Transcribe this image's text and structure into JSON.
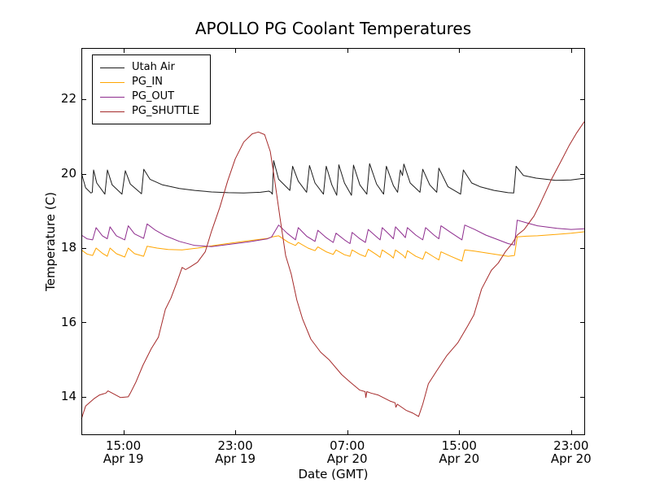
{
  "figure": {
    "background": "#ffffff",
    "text_color": "#000000",
    "axes_color": "#000000"
  },
  "chart_data": {
    "type": "line",
    "title": "APOLLO PG Coolant Temperatures",
    "xlabel": "Date (GMT)",
    "ylabel": "Temperature (C)",
    "grid": false,
    "legend_position": "upper left",
    "x_unit": "hours since Apr 19 12:00 GMT (plot left edge)",
    "xlim": [
      0,
      36
    ],
    "ylim": [
      12.97,
      23.38
    ],
    "y_ticks": [
      {
        "value": 22,
        "label": "22"
      },
      {
        "value": 20,
        "label": "20"
      },
      {
        "value": 18,
        "label": "18"
      },
      {
        "value": 16,
        "label": "16"
      },
      {
        "value": 14,
        "label": "14"
      }
    ],
    "x_ticks": [
      {
        "h": 3,
        "line1": "15:00",
        "line2": "Apr 19"
      },
      {
        "h": 11,
        "line1": "23:00",
        "line2": "Apr 19"
      },
      {
        "h": 19,
        "line1": "07:00",
        "line2": "Apr 20"
      },
      {
        "h": 27,
        "line1": "15:00",
        "line2": "Apr 20"
      },
      {
        "h": 35,
        "line1": "23:00",
        "line2": "Apr 20"
      }
    ],
    "series": [
      {
        "name": "Utah Air",
        "color": "#1c1c1c",
        "points": [
          [
            0,
            20.02
          ],
          [
            0.3,
            19.62
          ],
          [
            0.68,
            19.48
          ],
          [
            0.78,
            19.5
          ],
          [
            0.87,
            20.1
          ],
          [
            1.1,
            19.75
          ],
          [
            1.68,
            19.45
          ],
          [
            1.86,
            20.1
          ],
          [
            2.2,
            19.7
          ],
          [
            2.9,
            19.45
          ],
          [
            3.14,
            20.08
          ],
          [
            3.5,
            19.72
          ],
          [
            4.3,
            19.46
          ],
          [
            4.46,
            20.12
          ],
          [
            4.9,
            19.85
          ],
          [
            5.8,
            19.7
          ],
          [
            7.0,
            19.6
          ],
          [
            8.1,
            19.55
          ],
          [
            9.3,
            19.51
          ],
          [
            10.5,
            19.49
          ],
          [
            11.6,
            19.48
          ],
          [
            12.8,
            19.5
          ],
          [
            13.4,
            19.53
          ],
          [
            13.55,
            19.5
          ],
          [
            13.65,
            19.45
          ],
          [
            13.74,
            20.35
          ],
          [
            14.1,
            19.85
          ],
          [
            14.9,
            19.55
          ],
          [
            15.1,
            20.2
          ],
          [
            15.5,
            19.8
          ],
          [
            16.1,
            19.5
          ],
          [
            16.3,
            20.22
          ],
          [
            16.7,
            19.75
          ],
          [
            17.3,
            19.45
          ],
          [
            17.5,
            20.2
          ],
          [
            17.9,
            19.7
          ],
          [
            18.25,
            19.42
          ],
          [
            18.4,
            20.24
          ],
          [
            18.8,
            19.75
          ],
          [
            19.3,
            19.42
          ],
          [
            19.45,
            20.23
          ],
          [
            19.9,
            19.7
          ],
          [
            20.4,
            19.45
          ],
          [
            20.6,
            20.27
          ],
          [
            21.1,
            19.72
          ],
          [
            21.6,
            19.45
          ],
          [
            21.8,
            20.2
          ],
          [
            22.3,
            19.68
          ],
          [
            22.6,
            19.5
          ],
          [
            22.8,
            20.1
          ],
          [
            22.95,
            19.95
          ],
          [
            23.05,
            20.26
          ],
          [
            23.5,
            19.75
          ],
          [
            24.2,
            19.5
          ],
          [
            24.4,
            20.12
          ],
          [
            24.9,
            19.7
          ],
          [
            25.4,
            19.5
          ],
          [
            25.55,
            20.15
          ],
          [
            26.2,
            19.65
          ],
          [
            27.1,
            19.45
          ],
          [
            27.3,
            20.1
          ],
          [
            27.9,
            19.75
          ],
          [
            28.5,
            19.65
          ],
          [
            29.5,
            19.55
          ],
          [
            30.5,
            19.49
          ],
          [
            30.9,
            19.48
          ],
          [
            31.07,
            20.2
          ],
          [
            31.6,
            19.95
          ],
          [
            32.5,
            19.88
          ],
          [
            33.9,
            19.82
          ],
          [
            35.0,
            19.83
          ],
          [
            36.0,
            19.88
          ]
        ]
      },
      {
        "name": "PG_IN",
        "color": "#ffa500",
        "points": [
          [
            0,
            17.95
          ],
          [
            0.4,
            17.84
          ],
          [
            0.8,
            17.8
          ],
          [
            1.05,
            18.0
          ],
          [
            1.5,
            17.86
          ],
          [
            1.85,
            17.78
          ],
          [
            2.05,
            18.0
          ],
          [
            2.5,
            17.85
          ],
          [
            3.1,
            17.76
          ],
          [
            3.35,
            18.0
          ],
          [
            3.8,
            17.85
          ],
          [
            4.45,
            17.78
          ],
          [
            4.7,
            18.05
          ],
          [
            5.4,
            18.0
          ],
          [
            6.2,
            17.96
          ],
          [
            7.2,
            17.95
          ],
          [
            8.3,
            18.0
          ],
          [
            9.5,
            18.07
          ],
          [
            10.8,
            18.14
          ],
          [
            12.0,
            18.2
          ],
          [
            13.3,
            18.26
          ],
          [
            13.65,
            18.3
          ],
          [
            14.1,
            18.33
          ],
          [
            14.8,
            18.15
          ],
          [
            15.3,
            18.07
          ],
          [
            15.5,
            18.15
          ],
          [
            16.2,
            18.0
          ],
          [
            16.7,
            17.93
          ],
          [
            16.9,
            18.03
          ],
          [
            17.5,
            17.9
          ],
          [
            18.0,
            17.83
          ],
          [
            18.2,
            17.95
          ],
          [
            18.8,
            17.82
          ],
          [
            19.2,
            17.78
          ],
          [
            19.35,
            17.95
          ],
          [
            19.9,
            17.83
          ],
          [
            20.3,
            17.77
          ],
          [
            20.5,
            17.97
          ],
          [
            21.1,
            17.82
          ],
          [
            21.35,
            17.75
          ],
          [
            21.5,
            17.95
          ],
          [
            22.1,
            17.8
          ],
          [
            22.3,
            17.73
          ],
          [
            22.45,
            17.95
          ],
          [
            23.0,
            17.8
          ],
          [
            23.15,
            17.73
          ],
          [
            23.3,
            17.93
          ],
          [
            23.9,
            17.78
          ],
          [
            24.4,
            17.7
          ],
          [
            24.6,
            17.9
          ],
          [
            25.2,
            17.76
          ],
          [
            25.55,
            17.68
          ],
          [
            25.7,
            17.9
          ],
          [
            26.4,
            17.78
          ],
          [
            27.2,
            17.65
          ],
          [
            27.4,
            17.95
          ],
          [
            28.1,
            17.92
          ],
          [
            28.9,
            17.87
          ],
          [
            29.8,
            17.82
          ],
          [
            30.5,
            17.78
          ],
          [
            30.95,
            17.8
          ],
          [
            31.15,
            18.3
          ],
          [
            31.8,
            18.32
          ],
          [
            32.6,
            18.33
          ],
          [
            34.0,
            18.37
          ],
          [
            35.0,
            18.4
          ],
          [
            36.0,
            18.44
          ]
        ]
      },
      {
        "name": "PG_OUT",
        "color": "#8e2d8e",
        "points": [
          [
            0,
            18.35
          ],
          [
            0.4,
            18.25
          ],
          [
            0.8,
            18.22
          ],
          [
            1.05,
            18.55
          ],
          [
            1.5,
            18.33
          ],
          [
            1.85,
            18.25
          ],
          [
            2.05,
            18.57
          ],
          [
            2.5,
            18.33
          ],
          [
            3.1,
            18.22
          ],
          [
            3.35,
            18.6
          ],
          [
            3.8,
            18.38
          ],
          [
            4.45,
            18.26
          ],
          [
            4.7,
            18.65
          ],
          [
            5.3,
            18.48
          ],
          [
            6.0,
            18.33
          ],
          [
            7.0,
            18.18
          ],
          [
            8.1,
            18.07
          ],
          [
            9.3,
            18.04
          ],
          [
            10.6,
            18.1
          ],
          [
            12.0,
            18.17
          ],
          [
            13.3,
            18.25
          ],
          [
            13.6,
            18.3
          ],
          [
            14.1,
            18.62
          ],
          [
            14.7,
            18.4
          ],
          [
            15.3,
            18.22
          ],
          [
            15.5,
            18.55
          ],
          [
            16.1,
            18.32
          ],
          [
            16.7,
            18.18
          ],
          [
            16.9,
            18.48
          ],
          [
            17.5,
            18.28
          ],
          [
            18.0,
            18.15
          ],
          [
            18.2,
            18.4
          ],
          [
            18.8,
            18.22
          ],
          [
            19.2,
            18.12
          ],
          [
            19.35,
            18.42
          ],
          [
            19.9,
            18.25
          ],
          [
            20.3,
            18.15
          ],
          [
            20.5,
            18.5
          ],
          [
            21.1,
            18.3
          ],
          [
            21.35,
            18.22
          ],
          [
            21.5,
            18.55
          ],
          [
            22.1,
            18.33
          ],
          [
            22.3,
            18.25
          ],
          [
            22.45,
            18.57
          ],
          [
            23.0,
            18.35
          ],
          [
            23.15,
            18.28
          ],
          [
            23.3,
            18.55
          ],
          [
            23.9,
            18.35
          ],
          [
            24.4,
            18.22
          ],
          [
            24.6,
            18.55
          ],
          [
            25.2,
            18.35
          ],
          [
            25.55,
            18.25
          ],
          [
            25.7,
            18.6
          ],
          [
            26.4,
            18.42
          ],
          [
            27.2,
            18.22
          ],
          [
            27.4,
            18.62
          ],
          [
            28.1,
            18.5
          ],
          [
            28.9,
            18.35
          ],
          [
            29.8,
            18.22
          ],
          [
            30.5,
            18.12
          ],
          [
            30.95,
            18.08
          ],
          [
            31.15,
            18.75
          ],
          [
            31.8,
            18.68
          ],
          [
            32.6,
            18.6
          ],
          [
            34.0,
            18.53
          ],
          [
            35.0,
            18.5
          ],
          [
            36.0,
            18.52
          ]
        ]
      },
      {
        "name": "PG_SHUTTLE",
        "color": "#a52a2a",
        "points": [
          [
            0,
            13.4
          ],
          [
            0.3,
            13.75
          ],
          [
            0.9,
            13.95
          ],
          [
            1.3,
            14.05
          ],
          [
            1.75,
            14.1
          ],
          [
            1.9,
            14.16
          ],
          [
            2.3,
            14.08
          ],
          [
            2.8,
            13.98
          ],
          [
            3.35,
            14.0
          ],
          [
            3.5,
            14.1
          ],
          [
            3.9,
            14.4
          ],
          [
            4.4,
            14.85
          ],
          [
            5.0,
            15.3
          ],
          [
            5.5,
            15.6
          ],
          [
            6.0,
            16.35
          ],
          [
            6.4,
            16.65
          ],
          [
            6.8,
            17.05
          ],
          [
            7.2,
            17.48
          ],
          [
            7.45,
            17.42
          ],
          [
            7.8,
            17.5
          ],
          [
            8.3,
            17.62
          ],
          [
            8.85,
            17.9
          ],
          [
            9.3,
            18.45
          ],
          [
            9.9,
            19.1
          ],
          [
            10.45,
            19.8
          ],
          [
            11.0,
            20.4
          ],
          [
            11.6,
            20.85
          ],
          [
            12.2,
            21.07
          ],
          [
            12.65,
            21.12
          ],
          [
            13.1,
            21.05
          ],
          [
            13.5,
            20.6
          ],
          [
            13.75,
            20.0
          ],
          [
            14.2,
            18.8
          ],
          [
            14.6,
            17.8
          ],
          [
            15.0,
            17.3
          ],
          [
            15.4,
            16.6
          ],
          [
            15.8,
            16.1
          ],
          [
            16.4,
            15.55
          ],
          [
            17.1,
            15.2
          ],
          [
            17.7,
            15.0
          ],
          [
            18.6,
            14.6
          ],
          [
            19.2,
            14.4
          ],
          [
            19.9,
            14.18
          ],
          [
            20.28,
            14.14
          ],
          [
            20.33,
            13.98
          ],
          [
            20.4,
            14.14
          ],
          [
            20.7,
            14.1
          ],
          [
            21.2,
            14.05
          ],
          [
            22.1,
            13.88
          ],
          [
            22.42,
            13.84
          ],
          [
            22.48,
            13.72
          ],
          [
            22.58,
            13.8
          ],
          [
            23.2,
            13.64
          ],
          [
            23.7,
            13.56
          ],
          [
            24.1,
            13.47
          ],
          [
            24.4,
            13.8
          ],
          [
            24.8,
            14.35
          ],
          [
            25.4,
            14.7
          ],
          [
            26.1,
            15.1
          ],
          [
            26.9,
            15.45
          ],
          [
            27.6,
            15.9
          ],
          [
            28.05,
            16.2
          ],
          [
            28.6,
            16.9
          ],
          [
            29.3,
            17.4
          ],
          [
            29.8,
            17.6
          ],
          [
            30.3,
            17.9
          ],
          [
            30.8,
            18.13
          ],
          [
            31.15,
            18.35
          ],
          [
            31.65,
            18.5
          ],
          [
            32.35,
            18.86
          ],
          [
            32.8,
            19.2
          ],
          [
            33.6,
            19.85
          ],
          [
            34.3,
            20.35
          ],
          [
            34.85,
            20.75
          ],
          [
            35.4,
            21.1
          ],
          [
            35.95,
            21.4
          ]
        ]
      }
    ],
    "legend": [
      "Utah Air",
      "PG_IN",
      "PG_OUT",
      "PG_SHUTTLE"
    ]
  }
}
